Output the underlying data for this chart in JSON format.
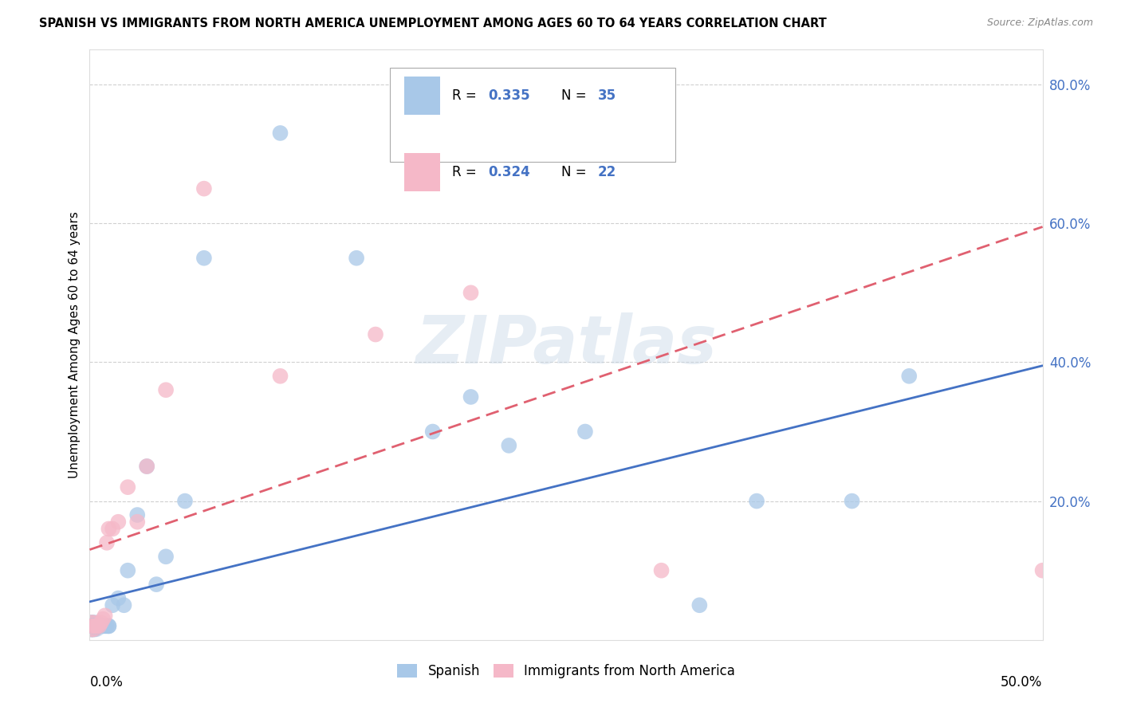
{
  "title": "SPANISH VS IMMIGRANTS FROM NORTH AMERICA UNEMPLOYMENT AMONG AGES 60 TO 64 YEARS CORRELATION CHART",
  "source": "Source: ZipAtlas.com",
  "ylabel": "Unemployment Among Ages 60 to 64 years",
  "xlim": [
    0.0,
    0.5
  ],
  "ylim": [
    0.0,
    0.85
  ],
  "ytick_values": [
    0.2,
    0.4,
    0.6,
    0.8
  ],
  "ytick_labels": [
    "20.0%",
    "40.0%",
    "60.0%",
    "80.0%"
  ],
  "legend_r_blue": "0.335",
  "legend_n_blue": "35",
  "legend_r_pink": "0.324",
  "legend_n_pink": "22",
  "legend_label_blue": "Spanish",
  "legend_label_pink": "Immigrants from North America",
  "blue_color": "#a8c8e8",
  "pink_color": "#f5b8c8",
  "trendline_blue_color": "#4472c4",
  "trendline_pink_color": "#e06070",
  "watermark": "ZIPatlas",
  "blue_trendline_x": [
    0.0,
    0.5
  ],
  "blue_trendline_y": [
    0.055,
    0.395
  ],
  "pink_trendline_x": [
    0.0,
    0.5
  ],
  "pink_trendline_y": [
    0.13,
    0.595
  ],
  "blue_scatter_x": [
    0.001,
    0.002,
    0.002,
    0.003,
    0.003,
    0.004,
    0.004,
    0.005,
    0.005,
    0.006,
    0.007,
    0.008,
    0.009,
    0.01,
    0.01,
    0.012,
    0.015,
    0.018,
    0.02,
    0.025,
    0.03,
    0.035,
    0.04,
    0.05,
    0.06,
    0.1,
    0.14,
    0.18,
    0.2,
    0.22,
    0.26,
    0.32,
    0.35,
    0.4,
    0.43
  ],
  "blue_scatter_y": [
    0.02,
    0.02,
    0.02,
    0.02,
    0.02,
    0.02,
    0.02,
    0.02,
    0.02,
    0.02,
    0.02,
    0.02,
    0.02,
    0.02,
    0.02,
    0.05,
    0.06,
    0.05,
    0.1,
    0.18,
    0.25,
    0.08,
    0.12,
    0.2,
    0.55,
    0.73,
    0.55,
    0.3,
    0.35,
    0.28,
    0.3,
    0.05,
    0.2,
    0.2,
    0.38
  ],
  "pink_scatter_x": [
    0.001,
    0.002,
    0.003,
    0.004,
    0.005,
    0.006,
    0.007,
    0.008,
    0.009,
    0.01,
    0.012,
    0.015,
    0.02,
    0.025,
    0.03,
    0.04,
    0.06,
    0.1,
    0.15,
    0.2,
    0.3,
    0.5
  ],
  "pink_scatter_y": [
    0.02,
    0.02,
    0.02,
    0.02,
    0.02,
    0.025,
    0.03,
    0.035,
    0.14,
    0.16,
    0.16,
    0.17,
    0.22,
    0.17,
    0.25,
    0.36,
    0.65,
    0.38,
    0.44,
    0.5,
    0.1,
    0.1
  ]
}
